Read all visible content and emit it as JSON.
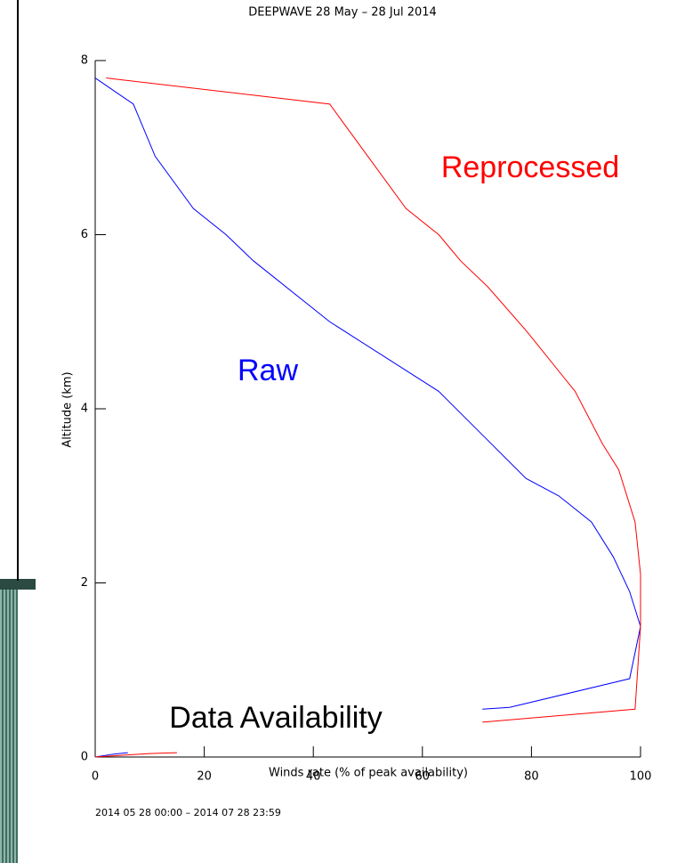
{
  "chart_data": {
    "type": "line",
    "title": "DEEPWAVE 28 May – 28 Jul 2014",
    "x_label": "Winds rate (% of peak availability)",
    "y_label": "Altitude (km)",
    "footer": "2014 05 28 00:00 – 2014 07 28 23:59",
    "xlim": [
      0,
      100
    ],
    "ylim": [
      0,
      8
    ],
    "xticks": [
      0,
      20,
      40,
      60,
      80,
      100
    ],
    "yticks": [
      0,
      2,
      4,
      6,
      8
    ],
    "annotations": [
      {
        "text": "Reprocessed",
        "color": "#ff0000"
      },
      {
        "text": "Raw",
        "color": "#0000ff"
      },
      {
        "text": "Data Availability",
        "color": "#000000"
      }
    ],
    "series": [
      {
        "color": "#0000ff",
        "x": [
          0,
          7,
          11,
          18,
          24,
          29,
          43,
          63,
          71,
          79,
          85,
          91,
          95,
          98,
          100,
          98,
          76,
          71
        ],
        "values": [
          7.8,
          7.5,
          6.9,
          6.3,
          6.0,
          5.7,
          5.0,
          4.2,
          3.7,
          3.2,
          3.0,
          2.7,
          2.3,
          1.9,
          1.5,
          0.9,
          0.57,
          0.55
        ]
      },
      {
        "color": "#ff0000",
        "x": [
          2,
          43,
          50,
          57,
          63,
          67,
          72,
          79,
          88,
          93,
          96,
          99,
          100,
          100,
          99,
          71
        ],
        "values": [
          7.8,
          7.5,
          6.9,
          6.3,
          6.0,
          5.7,
          5.4,
          4.9,
          4.2,
          3.6,
          3.3,
          2.7,
          2.1,
          1.5,
          0.55,
          0.4
        ]
      },
      {
        "color": "#0000ff",
        "x": [
          0,
          3,
          6
        ],
        "values": [
          0,
          0.03,
          0.05
        ]
      },
      {
        "color": "#ff0000",
        "x": [
          0,
          5,
          10,
          15
        ],
        "values": [
          0,
          0.02,
          0.04,
          0.05
        ]
      }
    ]
  }
}
